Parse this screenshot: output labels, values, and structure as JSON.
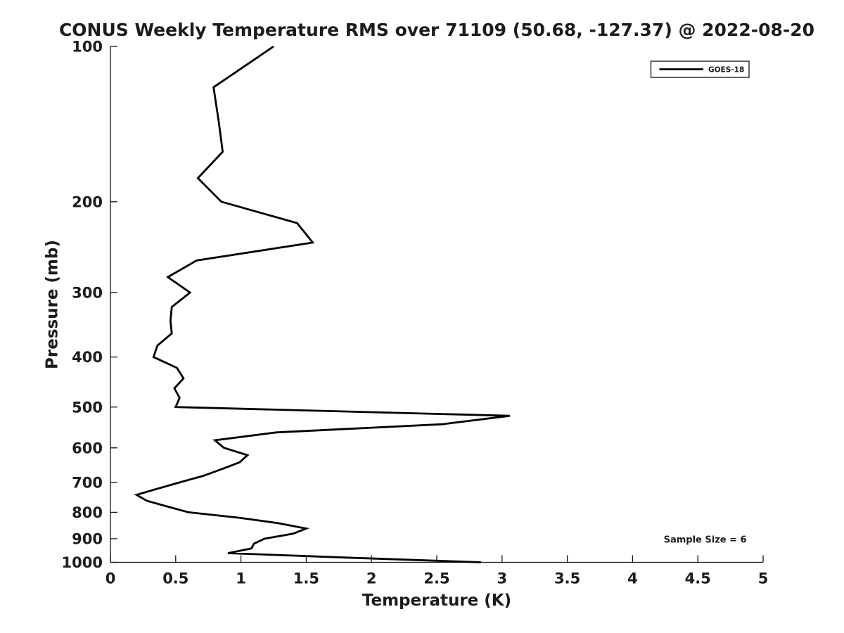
{
  "chart_data": {
    "type": "line",
    "title": "CONUS Weekly Temperature RMS over 71109 (50.68, -127.37) @ 2022-08-20",
    "xlabel": "Temperature (K)",
    "ylabel": "Pressure (mb)",
    "annotation": "Sample Size = 6",
    "xlim": [
      0,
      5
    ],
    "ylim": [
      1000,
      100
    ],
    "y_scale": "log",
    "grid": false,
    "background_color": "#ffffff",
    "axis_color": "#111111",
    "text_color": "#1c1c1c",
    "x_ticks": {
      "values": [
        0,
        0.5,
        1,
        1.5,
        2,
        2.5,
        3,
        3.5,
        4,
        4.5,
        5
      ],
      "labels": [
        "0",
        "0.5",
        "1",
        "1.5",
        "2",
        "2.5",
        "3",
        "3.5",
        "4",
        "4.5",
        "5"
      ]
    },
    "y_ticks": {
      "values": [
        100,
        200,
        300,
        400,
        500,
        600,
        700,
        800,
        900,
        1000
      ],
      "labels": [
        "100",
        "200",
        "300",
        "400",
        "500",
        "600",
        "700",
        "800",
        "900",
        "1000"
      ]
    },
    "legend": {
      "location": "upper right",
      "entries": [
        {
          "label": "GOES-18",
          "color": "#000000",
          "line_width": 2.8
        }
      ]
    },
    "series": [
      {
        "name": "GOES-18",
        "color": "#000000",
        "line_width": 2.8,
        "pressure_mb": [
          100,
          120,
          140,
          160,
          180,
          200,
          220,
          240,
          260,
          280,
          300,
          320,
          340,
          360,
          380,
          400,
          420,
          440,
          460,
          480,
          500,
          520,
          540,
          560,
          580,
          600,
          620,
          640,
          660,
          680,
          700,
          720,
          740,
          760,
          780,
          800,
          820,
          840,
          860,
          880,
          900,
          920,
          940,
          960,
          980,
          1000
        ],
        "rms_K": [
          1.25,
          0.79,
          0.83,
          0.86,
          0.67,
          0.85,
          1.43,
          1.55,
          0.66,
          0.44,
          0.61,
          0.47,
          0.46,
          0.47,
          0.36,
          0.33,
          0.51,
          0.56,
          0.49,
          0.53,
          0.5,
          3.06,
          2.54,
          1.27,
          0.8,
          0.87,
          1.05,
          0.99,
          0.85,
          0.71,
          0.53,
          0.36,
          0.2,
          0.28,
          0.44,
          0.6,
          0.99,
          1.29,
          1.5,
          1.4,
          1.18,
          1.1,
          1.08,
          0.9,
          1.85,
          2.84
        ]
      }
    ]
  }
}
